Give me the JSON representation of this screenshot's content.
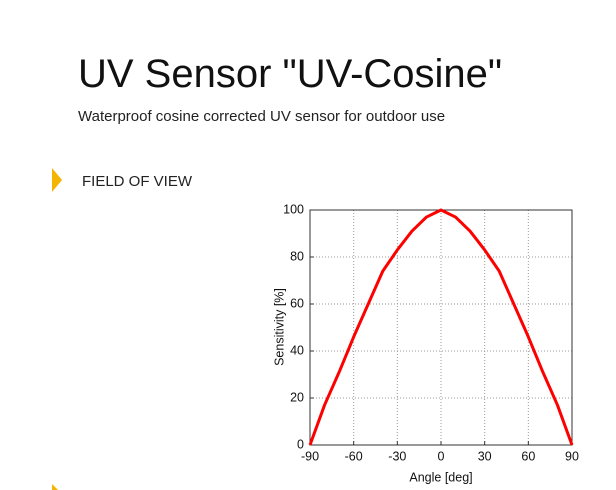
{
  "header": {
    "title": "UV Sensor \"UV-Cosine\"",
    "subtitle": "Waterproof cosine corrected UV sensor for outdoor use"
  },
  "section": {
    "title": "FIELD OF VIEW"
  },
  "chart_data": {
    "type": "line",
    "x_label": "Angle [deg]",
    "y_label": "Sensitivity [%]",
    "x": [
      -90,
      -80,
      -70,
      -60,
      -50,
      -40,
      -30,
      -20,
      -10,
      0,
      10,
      20,
      30,
      40,
      50,
      60,
      70,
      80,
      90
    ],
    "series": [
      {
        "name": "Sensitivity",
        "color": "#ff0000",
        "values": [
          0,
          17,
          31,
          46,
          60,
          74,
          83,
          91,
          97,
          100,
          97,
          91,
          83,
          74,
          60,
          46,
          31,
          17,
          0
        ]
      }
    ],
    "xlim": [
      -90,
      90
    ],
    "xticks": [
      -90,
      -60,
      -30,
      0,
      30,
      60,
      90
    ],
    "ylim": [
      0,
      100
    ],
    "yticks": [
      0,
      20,
      40,
      60,
      80,
      100
    ],
    "grid": true
  }
}
